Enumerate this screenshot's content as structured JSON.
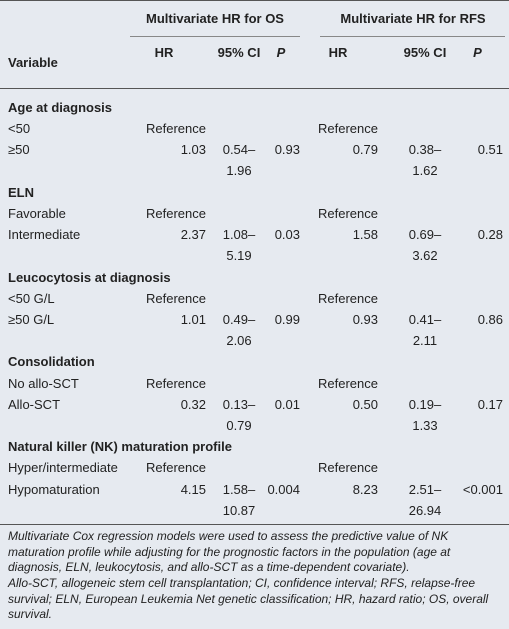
{
  "header": {
    "groups": [
      "Multivariate HR for OS",
      "Multivariate HR for RFS"
    ],
    "columns": [
      "Variable",
      "HR",
      "95% CI",
      "P",
      "HR",
      "95% CI",
      "P"
    ]
  },
  "sections": [
    {
      "title": "Age at diagnosis",
      "rows": [
        [
          "<50",
          "Reference",
          "",
          "",
          "Reference",
          "",
          ""
        ],
        [
          "≥50",
          "1.03",
          "0.54–1.96",
          "0.93",
          "0.79",
          "0.38–1.62",
          "0.51"
        ]
      ]
    },
    {
      "title": "ELN",
      "rows": [
        [
          "Favorable",
          "Reference",
          "",
          "",
          "Reference",
          "",
          ""
        ],
        [
          "Intermediate",
          "2.37",
          "1.08–5.19",
          "0.03",
          "1.58",
          "0.69–3.62",
          "0.28"
        ]
      ]
    },
    {
      "title": "Leucocytosis at diagnosis",
      "rows": [
        [
          "<50 G/L",
          "Reference",
          "",
          "",
          "Reference",
          "",
          ""
        ],
        [
          "≥50 G/L",
          "1.01",
          "0.49–2.06",
          "0.99",
          "0.93",
          "0.41–2.11",
          "0.86"
        ]
      ]
    },
    {
      "title": "Consolidation",
      "rows": [
        [
          "No allo-SCT",
          "Reference",
          "",
          "",
          "Reference",
          "",
          ""
        ],
        [
          "Allo-SCT",
          "0.32",
          "0.13–0.79",
          "0.01",
          "0.50",
          "0.19–1.33",
          "0.17"
        ]
      ]
    },
    {
      "title": "Natural killer (NK) maturation profile",
      "rows": [
        [
          "Hyper/intermediate",
          "Reference",
          "",
          "",
          "Reference",
          "",
          ""
        ],
        [
          "Hypomaturation",
          "4.15",
          "1.58–10.87",
          "0.004",
          "8.23",
          "2.51–26.94",
          "<0.001"
        ]
      ]
    }
  ],
  "footnotes": [
    "Multivariate Cox regression models were used to assess the predictive value of NK maturation profile while adjusting for the prognostic factors in the population (age at diagnosis, ELN, leukocytosis, and allo-SCT as a time-dependent covariate).",
    "Allo-SCT, allogeneic stem cell transplantation; CI, confidence interval; RFS, relapse-free survival; ELN, European Leukemia Net genetic classification; HR, hazard ratio; OS, overall survival."
  ]
}
